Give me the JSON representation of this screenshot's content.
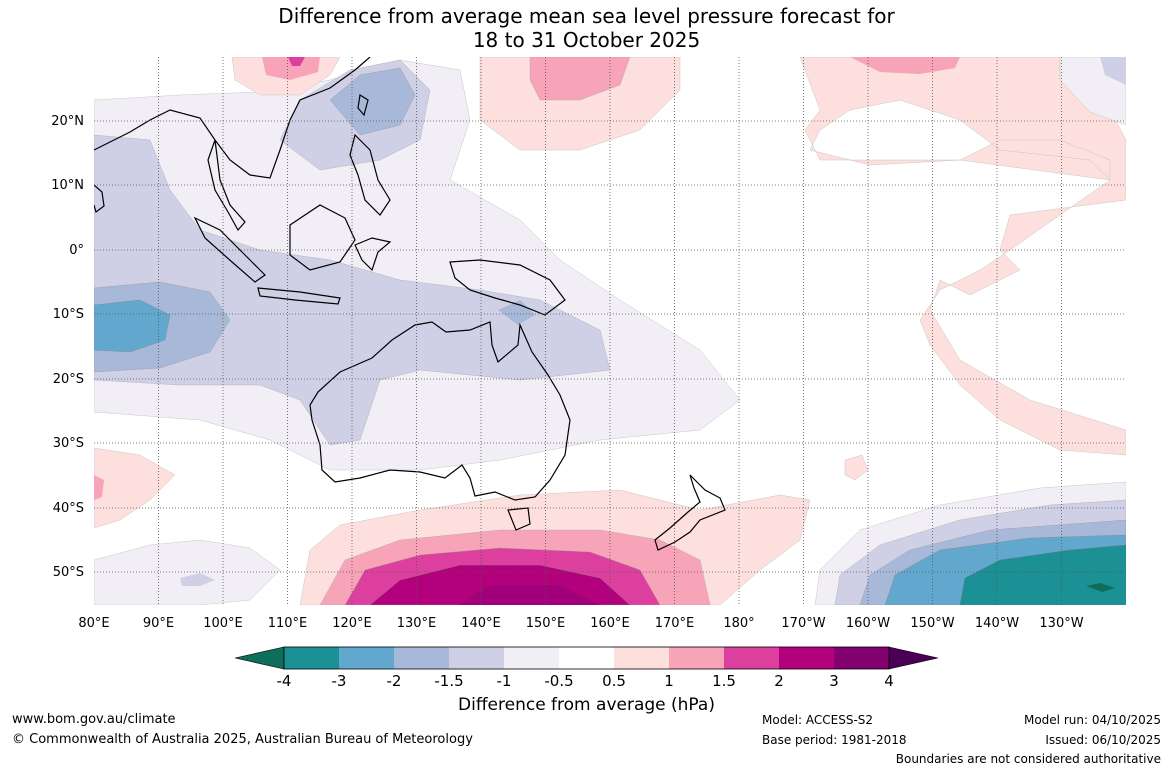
{
  "title": {
    "line1": "Difference from average mean sea level pressure forecast for",
    "line2": "18 to 31 October 2025"
  },
  "map": {
    "lat_labels": [
      "20°N",
      "10°N",
      "0°",
      "10°S",
      "20°S",
      "30°S",
      "40°S",
      "50°S"
    ],
    "lon_labels": [
      "80°E",
      "90°E",
      "100°E",
      "110°E",
      "120°E",
      "130°E",
      "140°E",
      "150°E",
      "160°E",
      "170°E",
      "180°",
      "170°W",
      "160°W",
      "150°W",
      "140°W",
      "130°W"
    ]
  },
  "colorbar": {
    "tick_labels": [
      "-4",
      "-3",
      "-2",
      "-1.5",
      "-1",
      "-0.5",
      "0.5",
      "1",
      "1.5",
      "2",
      "3",
      "4"
    ],
    "colors": [
      "#0e6e5a",
      "#1b9196",
      "#62a8ce",
      "#a8b8d8",
      "#cfd0e6",
      "#f2eef6",
      "#ffffff",
      "#fde0de",
      "#f7a3b8",
      "#dd3f9e",
      "#b3007d",
      "#820070",
      "#4a0055"
    ],
    "title": "Difference from average (hPa)"
  },
  "footer": {
    "url": "www.bom.gov.au/climate",
    "copyright": "© Commonwealth of Australia 2025, Australian Bureau of Meteorology",
    "model": "Model: ACCESS-S2",
    "base_period": "Base period: 1981-2018",
    "model_run": "Model run: 04/10/2025",
    "issued": "Issued: 06/10/2025",
    "disclaimer": "Boundaries are not considered authoritative"
  }
}
